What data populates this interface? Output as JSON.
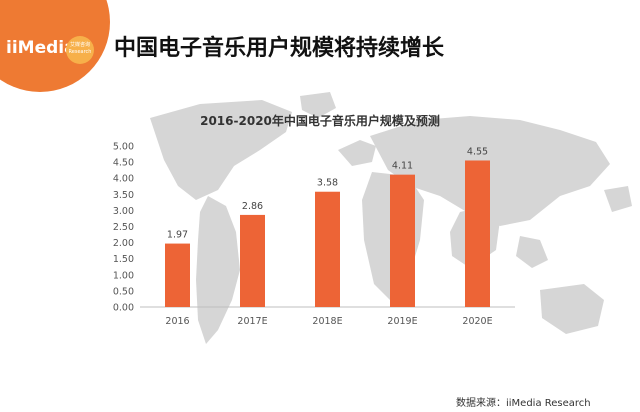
{
  "header": {
    "logo_text": "iiMedia",
    "logo_badge": "艾媒咨询 Research",
    "title": "中国电子音乐用户规模将持续增长"
  },
  "source": "数据来源：iiMedia Research",
  "colors": {
    "bar": "#ed6436",
    "logo": "#ee7a33",
    "map": "#d4d4d4"
  },
  "chart_data": {
    "type": "bar",
    "title": "2016-2020年中国电子音乐用户规模及预测",
    "categories": [
      "2016",
      "2017E",
      "2018E",
      "2019E",
      "2020E"
    ],
    "values": [
      1.97,
      2.86,
      3.58,
      4.11,
      4.55
    ],
    "value_labels": [
      "1.97",
      "2.86",
      "3.58",
      "4.11",
      "4.55"
    ],
    "yticks": [
      "0.00",
      "0.50",
      "1.00",
      "1.50",
      "2.00",
      "2.50",
      "3.00",
      "3.50",
      "4.00",
      "4.50",
      "5.00"
    ],
    "ylim": [
      0,
      5
    ],
    "xlabel": "",
    "ylabel": "",
    "grid": false,
    "legend": "none"
  }
}
